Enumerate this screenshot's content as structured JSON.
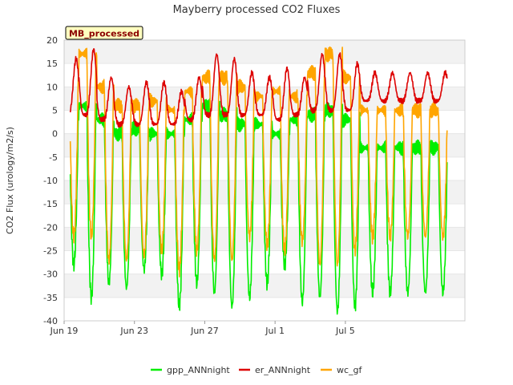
{
  "chart_data": {
    "type": "line",
    "title": "Mayberry processed CO2 Fluxes",
    "badge": "MB_processed",
    "ylabel": "CO2 Flux (urology/m2/s)",
    "xlabel": "",
    "ylim": [
      -40,
      20
    ],
    "yticks": [
      20,
      15,
      10,
      5,
      0,
      -5,
      -10,
      -15,
      -20,
      -25,
      -30,
      -35,
      -40
    ],
    "xlim": [
      0,
      22.8
    ],
    "xticks": [
      {
        "x": 0,
        "label": "Jun 19"
      },
      {
        "x": 4,
        "label": "Jun 23"
      },
      {
        "x": 8,
        "label": "Jun 27"
      },
      {
        "x": 12,
        "label": "Jul 1"
      },
      {
        "x": 16,
        "label": "Jul 5"
      }
    ],
    "grid": "horizontal bands",
    "legend_position": "bottom",
    "series": [
      {
        "name": "gpp_ANNnight",
        "color": "#00ee00",
        "daily_min": [
          -28,
          -35,
          -32,
          -33,
          -29,
          -30,
          -37,
          -32,
          -34,
          -37,
          -35,
          -32,
          -28,
          -36,
          -35,
          -38,
          -37,
          -34
        ],
        "daily_max": [
          4,
          6,
          3,
          0,
          1,
          0,
          0,
          3,
          6,
          4,
          2,
          2,
          0,
          3,
          4,
          5,
          3,
          -3
        ]
      },
      {
        "name": "er_ANNnight",
        "color": "#dd0000",
        "daily_min": [
          4,
          4,
          3,
          2,
          2,
          2,
          2,
          3,
          4,
          4,
          4,
          4,
          3,
          4,
          5,
          5,
          5,
          7
        ],
        "daily_max": [
          16,
          18,
          12,
          10,
          11,
          11,
          9,
          12,
          17,
          16,
          13,
          12,
          14,
          12,
          17,
          17,
          15,
          13
        ]
      },
      {
        "name": "wc_gf",
        "color": "#ffa500",
        "daily_min": [
          -22,
          -22,
          -27,
          -27,
          -26,
          -25,
          -29,
          -25,
          -27,
          -27,
          -22,
          -24,
          -25,
          -23,
          -28,
          -28,
          -25,
          -22
        ],
        "daily_max": [
          13,
          17,
          10,
          6,
          6,
          7,
          5,
          9,
          12,
          12,
          10,
          8,
          9,
          8,
          13,
          17,
          12,
          5
        ]
      }
    ]
  }
}
